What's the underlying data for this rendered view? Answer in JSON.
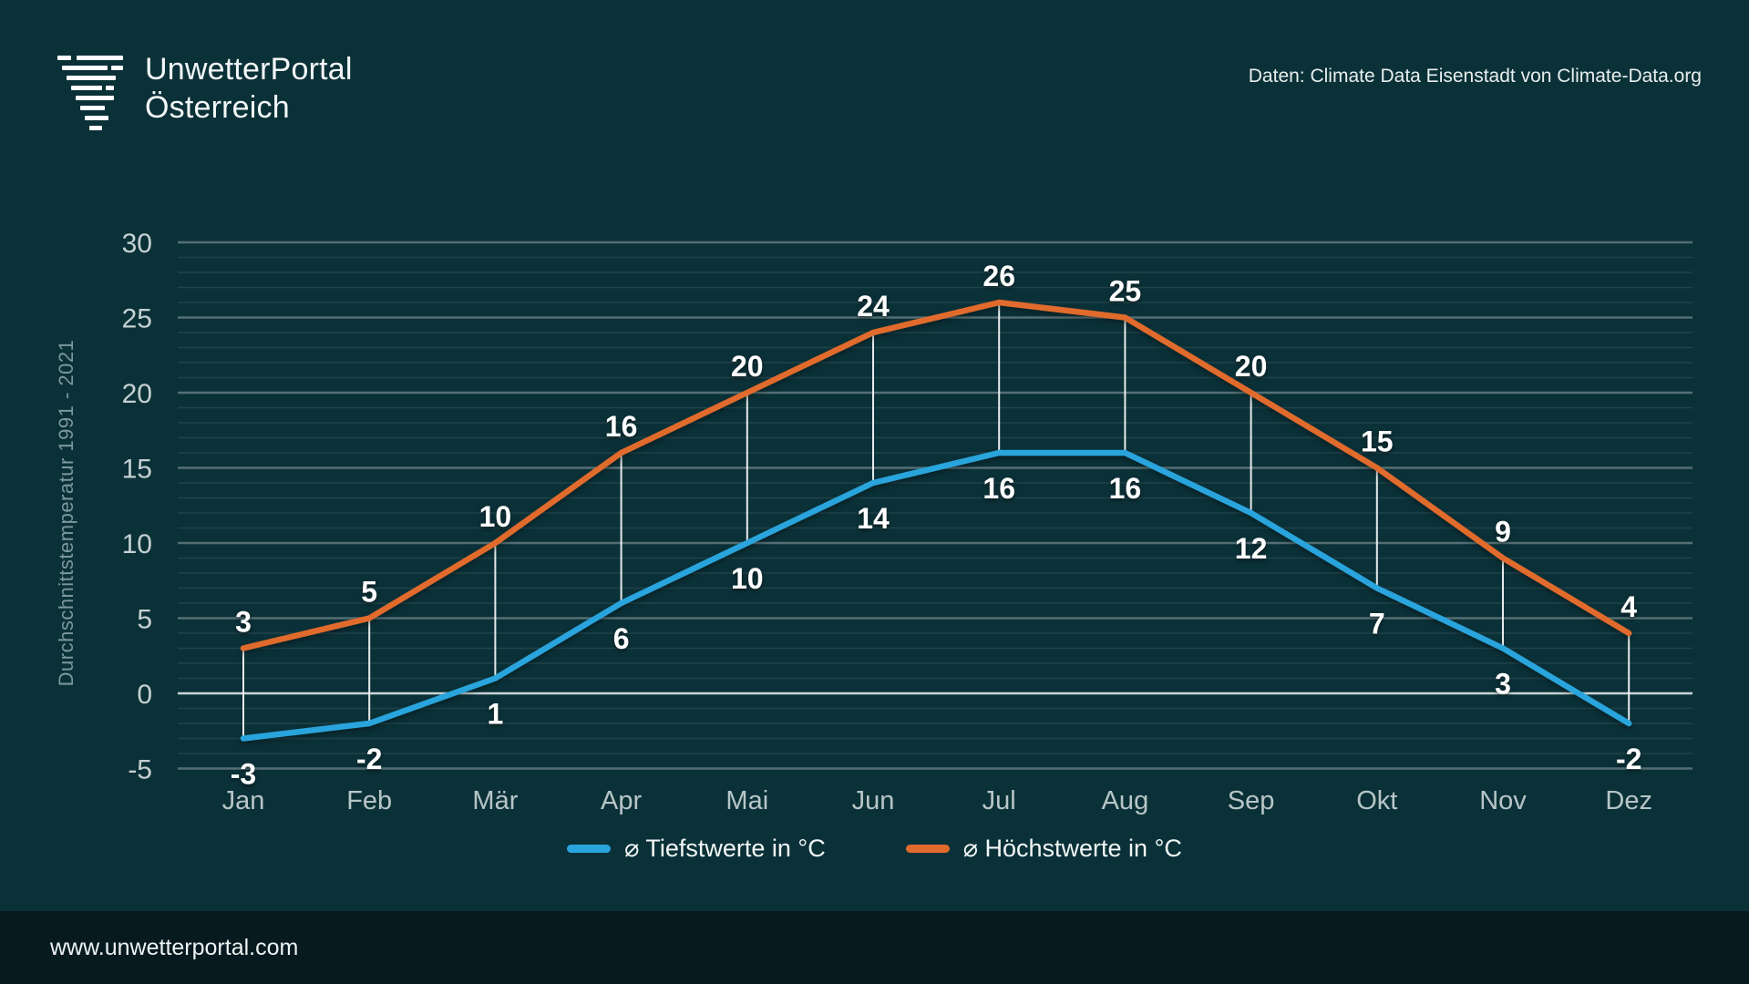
{
  "header": {
    "title_line1": "UnwetterPortal",
    "title_line2": "Österreich",
    "source": "Daten: Climate Data Eisenstadt von Climate-Data.org"
  },
  "footer": {
    "url": "www.unwetterportal.com"
  },
  "chart_data": {
    "type": "line",
    "title": "",
    "ylabel": "Durchschnittstemperatur 1991 - 2021",
    "xlabel": "",
    "categories": [
      "Jan",
      "Feb",
      "Mär",
      "Apr",
      "Mai",
      "Jun",
      "Jul",
      "Aug",
      "Sep",
      "Okt",
      "Nov",
      "Dez"
    ],
    "series": [
      {
        "name": "⌀ Tiefstwerte in °C",
        "color": "#29a4dc",
        "values": [
          -3,
          -2,
          1,
          6,
          10,
          14,
          16,
          16,
          12,
          7,
          3,
          -2
        ]
      },
      {
        "name": "⌀ Höchstwerte in °C",
        "color": "#e06b2c",
        "values": [
          3,
          5,
          10,
          16,
          20,
          24,
          26,
          25,
          20,
          15,
          9,
          4
        ]
      }
    ],
    "ylim": [
      -5,
      30
    ],
    "yticks": [
      -5,
      0,
      5,
      10,
      15,
      20,
      25,
      30
    ],
    "minor_step": 1,
    "grid": true,
    "value_labels": true,
    "connectors": true,
    "legend_position": "bottom",
    "colors": {
      "background": "#0b3138",
      "footer_background": "#071a20",
      "zero_line": "rgba(236,242,243,0.85)",
      "major_grid": "rgba(255,255,255,0.30)",
      "minor_grid": "rgba(255,255,255,0.09)",
      "connector": "rgba(255,255,255,0.9)",
      "tick_text": "#c5d0d2",
      "month_text": "#b7c5c7",
      "value_text": "#ffffff"
    }
  }
}
